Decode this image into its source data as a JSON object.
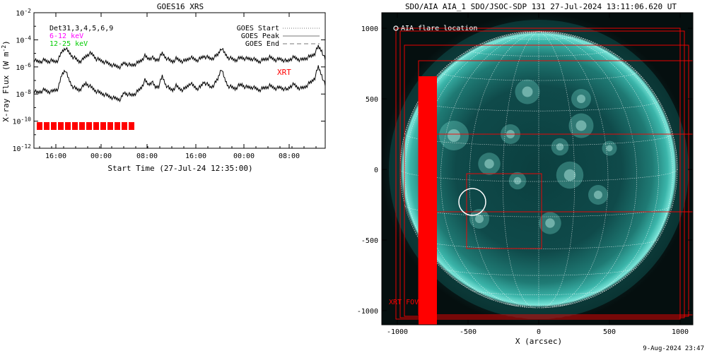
{
  "goes": {
    "title": "GOES16 XRS",
    "ylabel": "X-ray Flux (W m",
    "ylabel_exp": "-2",
    "ylabel_close": ")",
    "xlabel": "Start Time (27-Jul-24 12:35:00)",
    "legend_dets": "Det31,3,4,5,6,9",
    "legend_band1": "6-12 keV",
    "legend_band2": "12-25 keV",
    "legend_start": "GOES Start",
    "legend_peak": "GOES Peak",
    "legend_end": "GOES End",
    "xrt_label": "XRT",
    "ytick_base": "10",
    "colors": {
      "band1": "#ff00ff",
      "band2": "#00cc00",
      "red": "#ff0000"
    }
  },
  "aia": {
    "title": "SDO/AIA AIA_1 SDO/JSOC-SDP 131 27-Jul-2024 13:11:06.620 UT",
    "legend": "AIA flare location",
    "xlabel": "X (arcsec)",
    "xrt_fov_label": "XRT FOV",
    "timestamp": "9-Aug-2024 23:47"
  },
  "chart_data": [
    {
      "type": "line",
      "title": "GOES16 XRS",
      "xlabel": "Start Time (27-Jul-24 12:35:00)",
      "ylabel": "X-ray Flux (W m-2)",
      "yscale": "log",
      "ylim": [
        1e-12,
        0.01
      ],
      "yticks": [
        "-12",
        "-10",
        "-8",
        "-6",
        "-4",
        "-2"
      ],
      "xticks": [
        "16:00",
        "00:00",
        "08:00",
        "16:00",
        "00:00",
        "08:00"
      ],
      "series": [
        {
          "name": "GOES Start",
          "values": []
        },
        {
          "name": "GOES Peak",
          "values": []
        },
        {
          "name": "GOES End",
          "values": []
        }
      ],
      "upper_curve_log10": [
        -5.5,
        -5.6,
        -5.6,
        -5.5,
        -5.6,
        -5.55,
        -5.6,
        -5.5,
        -4.9,
        -4.6,
        -4.9,
        -5.2,
        -5.4,
        -5.6,
        -5.5,
        -5.2,
        -5.0,
        -5.1,
        -5.4,
        -5.5,
        -5.6,
        -5.7,
        -5.8,
        -5.9,
        -5.95,
        -6.0,
        -5.7,
        -5.8,
        -5.9,
        -5.8,
        -5.7,
        -5.5,
        -5.2,
        -5.4,
        -5.3,
        -5.5,
        -5.4,
        -5.0,
        -5.3,
        -5.5,
        -5.6,
        -5.4,
        -5.5,
        -5.6,
        -5.5,
        -5.3,
        -5.4,
        -5.5,
        -5.4,
        -5.2,
        -5.3,
        -5.4,
        -5.3,
        -5.1,
        -4.6,
        -5.0,
        -5.3,
        -5.4,
        -5.5,
        -5.4,
        -5.3,
        -5.4,
        -5.4,
        -5.4,
        -5.5,
        -5.6,
        -5.5,
        -5.4,
        -5.3,
        -5.4,
        -5.5,
        -5.4,
        -5.5,
        -5.6,
        -5.4,
        -5.3,
        -5.4,
        -5.5,
        -5.4,
        -5.3,
        -5.2,
        -5.0,
        -4.5,
        -4.8,
        -5.5
      ],
      "lower_curve_log10": [
        -7.8,
        -7.9,
        -7.8,
        -7.7,
        -7.8,
        -7.85,
        -7.7,
        -7.6,
        -6.6,
        -6.2,
        -6.9,
        -7.4,
        -7.6,
        -7.7,
        -7.5,
        -7.2,
        -7.4,
        -7.6,
        -7.8,
        -7.9,
        -8.0,
        -8.1,
        -8.2,
        -8.3,
        -8.35,
        -8.4,
        -7.9,
        -8.0,
        -8.1,
        -8.0,
        -7.8,
        -7.5,
        -7.0,
        -7.3,
        -7.1,
        -7.5,
        -7.4,
        -6.7,
        -7.3,
        -7.6,
        -7.7,
        -7.4,
        -7.6,
        -7.7,
        -7.5,
        -7.2,
        -7.4,
        -7.6,
        -7.5,
        -7.1,
        -7.3,
        -7.5,
        -7.3,
        -6.9,
        -6.1,
        -6.9,
        -7.4,
        -7.5,
        -7.6,
        -7.4,
        -7.3,
        -7.5,
        -7.5,
        -7.5,
        -7.6,
        -7.7,
        -7.6,
        -7.5,
        -7.4,
        -7.5,
        -7.6,
        -7.5,
        -7.6,
        -7.7,
        -7.4,
        -7.3,
        -7.5,
        -7.6,
        -7.5,
        -7.3,
        -7.1,
        -6.8,
        -6.0,
        -6.6,
        -7.4
      ]
    },
    {
      "type": "scatter",
      "title": "SDO/AIA AIA_1 SDO/JSOC-SDP 131 27-Jul-2024 13:11:06.620 UT",
      "xlabel": "X (arcsec)",
      "xlim": [
        -1000,
        1000
      ],
      "ylim": [
        -1000,
        1000
      ],
      "xticks": [
        -1000,
        -500,
        0,
        500,
        1000
      ],
      "yticks": [
        -1000,
        -500,
        0,
        500,
        1000
      ],
      "flare_location": {
        "x": -470,
        "y": -230
      },
      "xrt_fovs": [
        {
          "x0": -1010,
          "x1": 1000,
          "y0": -1060,
          "y1": 1000
        },
        {
          "x0": -980,
          "x1": 1030,
          "y0": -1050,
          "y1": 980
        },
        {
          "x0": -950,
          "x1": 1060,
          "y0": -1040,
          "y1": 880
        },
        {
          "x0": -850,
          "x1": 1090,
          "y0": -1030,
          "y1": 770
        },
        {
          "x0": -510,
          "x1": 20,
          "y0": -560,
          "y1": -30
        }
      ],
      "xrt_markers": [
        {
          "x0": -850,
          "x1": 1090,
          "y0": -300,
          "y1": 250
        }
      ]
    }
  ]
}
